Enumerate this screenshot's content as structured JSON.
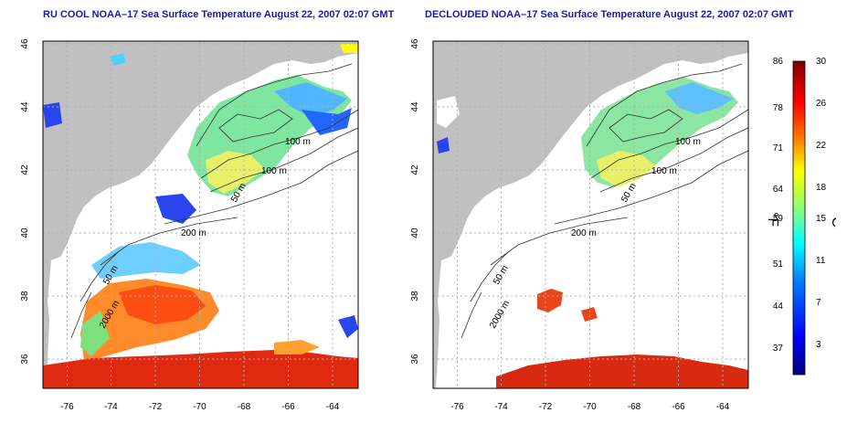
{
  "panels": [
    {
      "title": "RU COOL NOAA–17 Sea Surface Temperature August 22, 2007 02:07 GMT",
      "x_ticks": [
        "-76",
        "-74",
        "-72",
        "-70",
        "-68",
        "-66",
        "-64"
      ],
      "y_ticks": [
        "46",
        "44",
        "42",
        "40",
        "38",
        "36"
      ],
      "contour_labels": [
        "100 m",
        "100 m",
        "50 m",
        "200 m",
        "50 m",
        "2000 m"
      ]
    },
    {
      "title": "DECLOUDED NOAA–17 Sea Surface Temperature August 22, 2007 02:07 GMT",
      "x_ticks": [
        "-76",
        "-74",
        "-72",
        "-70",
        "-68",
        "-66",
        "-64"
      ],
      "y_ticks": [
        "46",
        "44",
        "42",
        "40",
        "38",
        "36"
      ],
      "contour_labels": [
        "100 m",
        "100 m",
        "50 m",
        "200 m",
        "50 m",
        "2000 m"
      ]
    }
  ],
  "colorbar": {
    "fahrenheit_ticks": [
      "86",
      "78",
      "71",
      "64",
      "59",
      "51",
      "44",
      "37"
    ],
    "celsius_ticks": [
      "30",
      "26",
      "22",
      "18",
      "15",
      "11",
      "7",
      "3"
    ],
    "left_unit": "°F",
    "right_unit": "°C",
    "range_celsius": [
      0,
      30
    ],
    "colors": [
      "#00007f",
      "#0000ff",
      "#007fff",
      "#00ffff",
      "#7fff7f",
      "#ffff00",
      "#ff7f00",
      "#ff0000",
      "#7f0000"
    ]
  },
  "colors": {
    "land": "#c0c0c0",
    "title": "#1a1aa6",
    "grid": "#b0b0b0"
  }
}
